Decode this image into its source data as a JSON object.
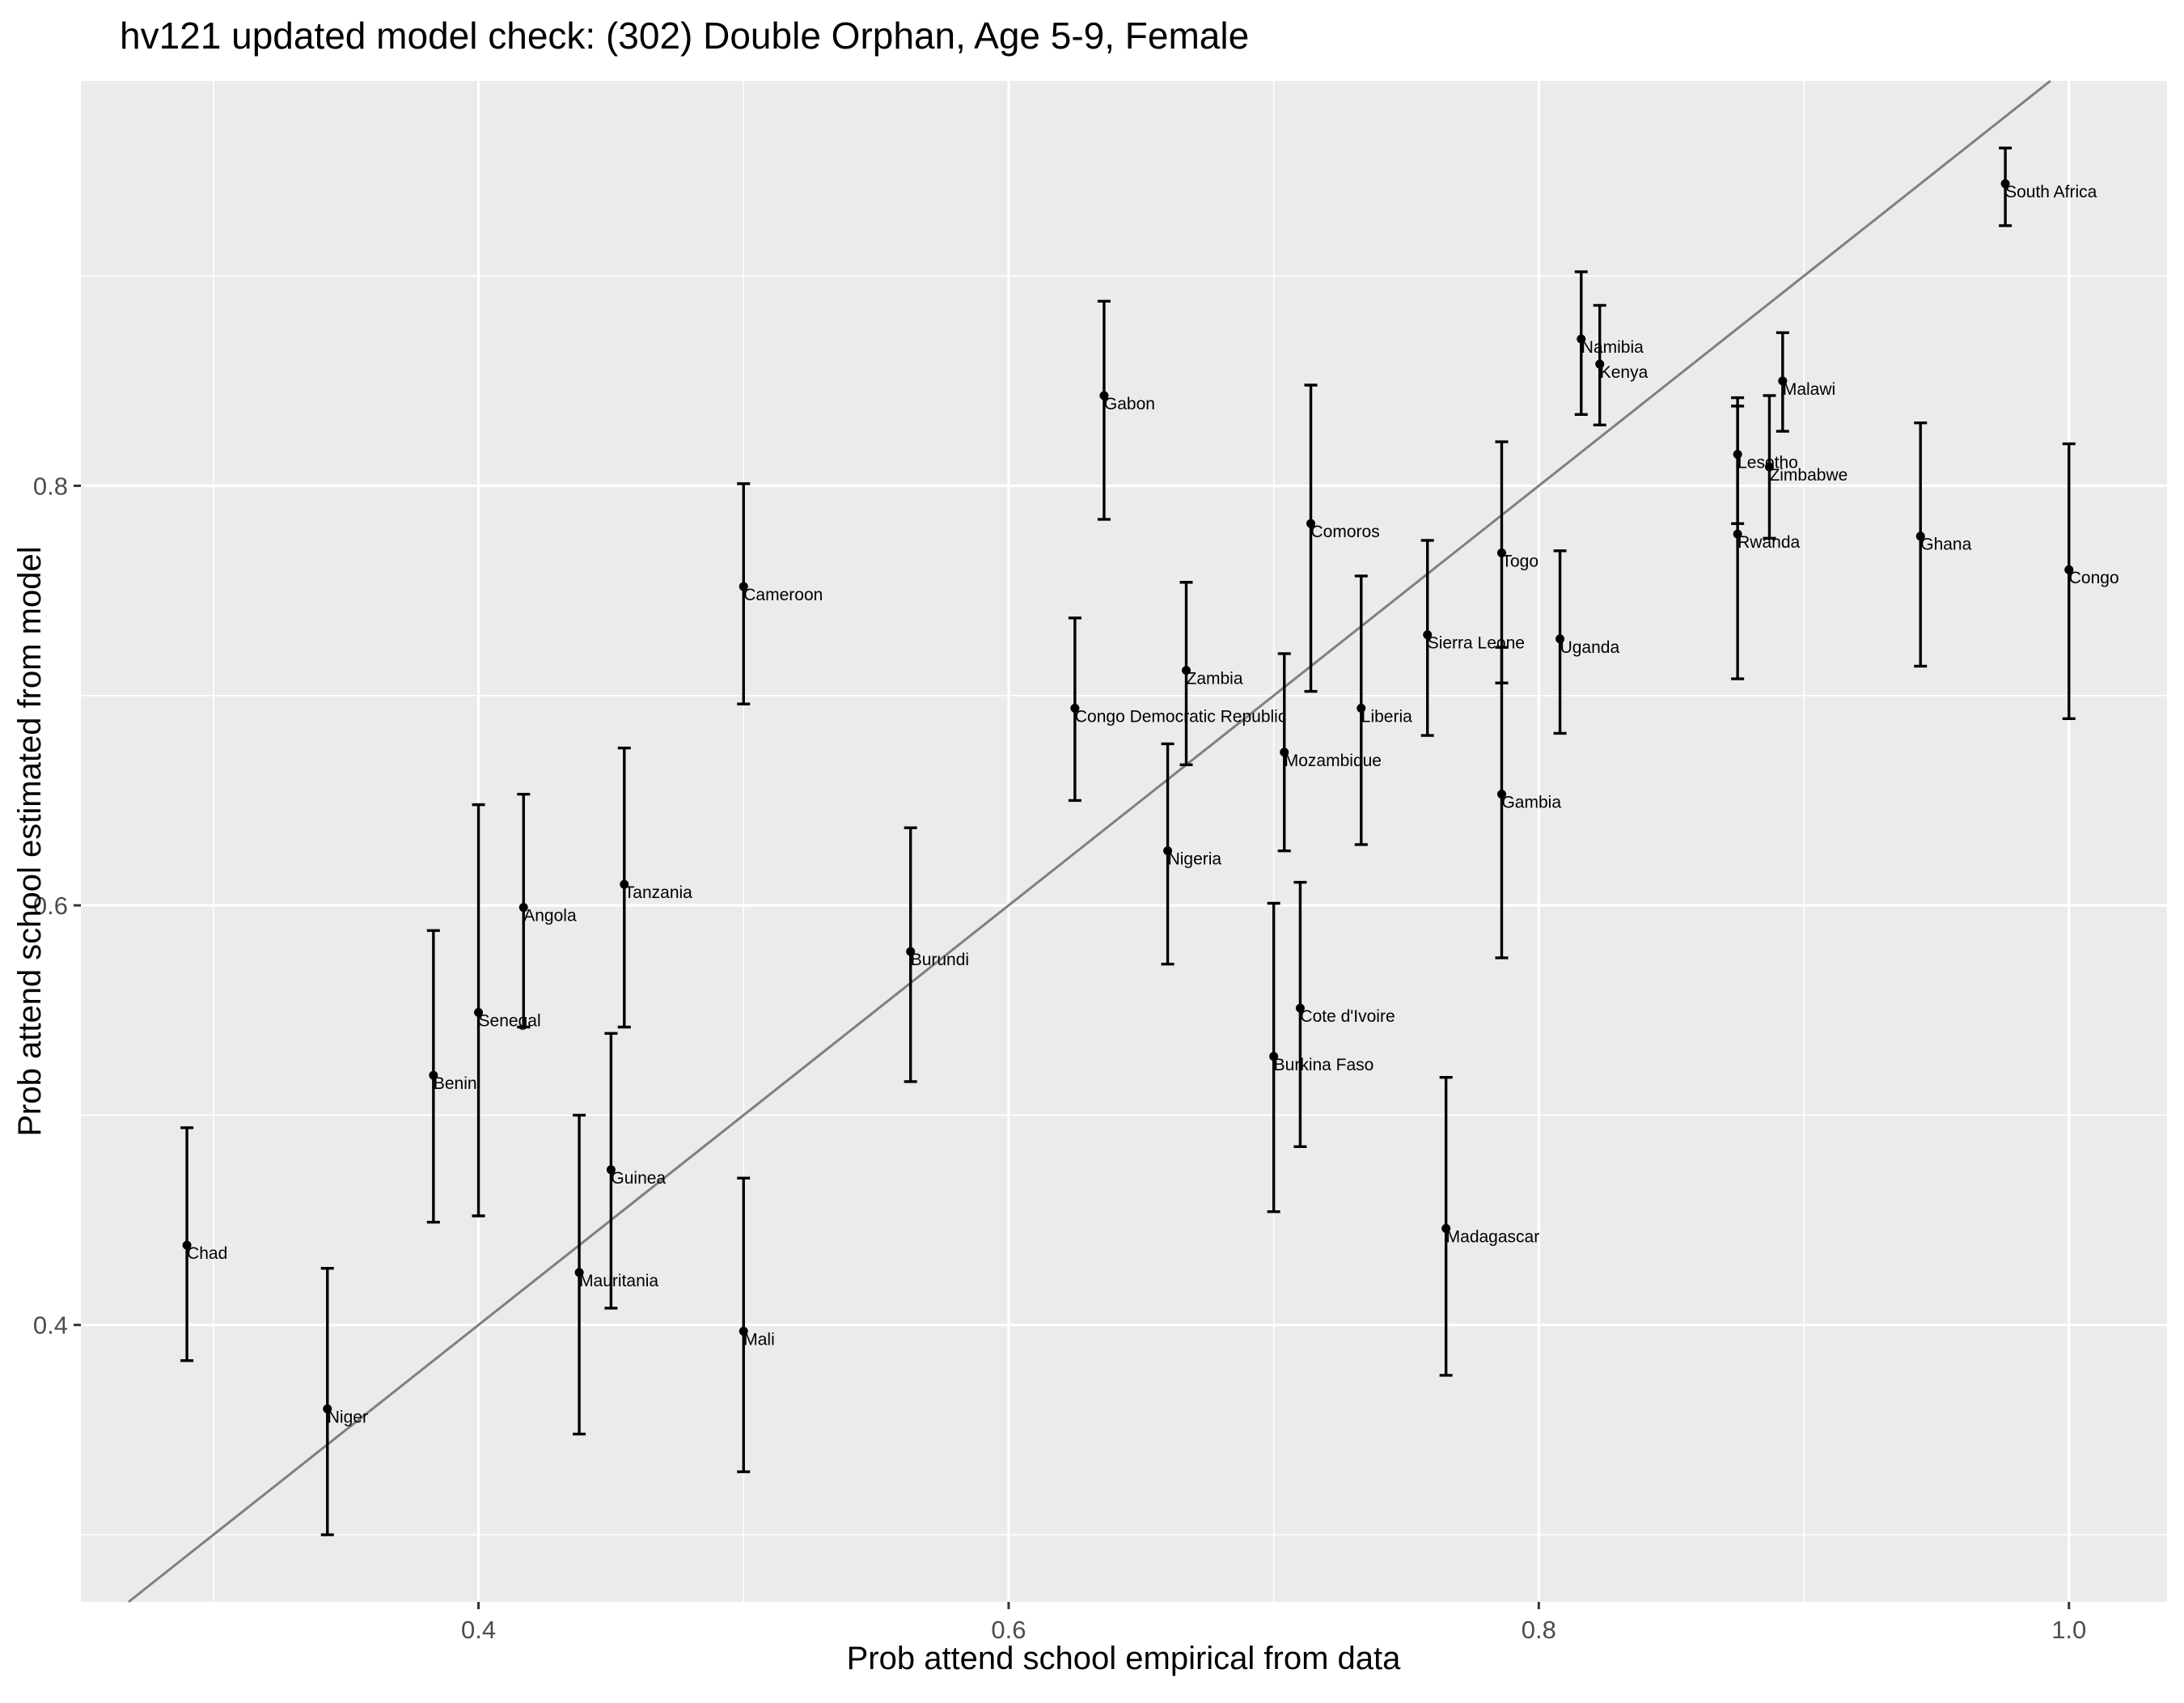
{
  "chart_data": {
    "type": "scatter",
    "title": "hv121 updated model check: (302) Double Orphan, Age 5-9, Female",
    "xlabel": "Prob attend school empirical from data",
    "ylabel": "Prob attend school estimated from model",
    "xlim": [
      0.25,
      1.037
    ],
    "ylim": [
      0.268,
      0.993
    ],
    "x_ticks": [
      0.4,
      0.6,
      0.8,
      1.0
    ],
    "x_tick_labels": [
      "0.4",
      "0.6",
      "0.8",
      "1.0"
    ],
    "y_ticks": [
      0.4,
      0.6,
      0.8
    ],
    "y_tick_labels": [
      "0.4",
      "0.6",
      "0.8"
    ],
    "grid": true,
    "background": "#ebebeb",
    "reference_line": {
      "type": "y=x",
      "color": "#7f7f7f"
    },
    "points": [
      {
        "label": "Chad",
        "x": 0.29,
        "y": 0.438,
        "lo": 0.383,
        "hi": 0.494
      },
      {
        "label": "Niger",
        "x": 0.343,
        "y": 0.36,
        "lo": 0.3,
        "hi": 0.427
      },
      {
        "label": "Benin",
        "x": 0.383,
        "y": 0.519,
        "lo": 0.449,
        "hi": 0.588
      },
      {
        "label": "Senegal",
        "x": 0.4,
        "y": 0.549,
        "lo": 0.452,
        "hi": 0.648
      },
      {
        "label": "Angola",
        "x": 0.417,
        "y": 0.599,
        "lo": 0.542,
        "hi": 0.653
      },
      {
        "label": "Mauritania",
        "x": 0.438,
        "y": 0.425,
        "lo": 0.348,
        "hi": 0.5
      },
      {
        "label": "Guinea",
        "x": 0.45,
        "y": 0.474,
        "lo": 0.408,
        "hi": 0.539
      },
      {
        "label": "Tanzania",
        "x": 0.455,
        "y": 0.61,
        "lo": 0.542,
        "hi": 0.675
      },
      {
        "label": "Cameroon",
        "x": 0.5,
        "y": 0.752,
        "lo": 0.696,
        "hi": 0.801
      },
      {
        "label": "Mali",
        "x": 0.5,
        "y": 0.397,
        "lo": 0.33,
        "hi": 0.47
      },
      {
        "label": "Burundi",
        "x": 0.563,
        "y": 0.578,
        "lo": 0.516,
        "hi": 0.637
      },
      {
        "label": "Congo Democratic Republic",
        "x": 0.625,
        "y": 0.694,
        "lo": 0.65,
        "hi": 0.737
      },
      {
        "label": "Gabon",
        "x": 0.636,
        "y": 0.843,
        "lo": 0.784,
        "hi": 0.888
      },
      {
        "label": "Nigeria",
        "x": 0.66,
        "y": 0.626,
        "lo": 0.572,
        "hi": 0.677
      },
      {
        "label": "Zambia",
        "x": 0.667,
        "y": 0.712,
        "lo": 0.667,
        "hi": 0.754
      },
      {
        "label": "Burkina Faso",
        "x": 0.7,
        "y": 0.528,
        "lo": 0.454,
        "hi": 0.601
      },
      {
        "label": "Mozambique",
        "x": 0.704,
        "y": 0.673,
        "lo": 0.626,
        "hi": 0.72
      },
      {
        "label": "Cote d'Ivoire",
        "x": 0.71,
        "y": 0.551,
        "lo": 0.485,
        "hi": 0.611
      },
      {
        "label": "Comoros",
        "x": 0.714,
        "y": 0.782,
        "lo": 0.702,
        "hi": 0.848
      },
      {
        "label": "Liberia",
        "x": 0.733,
        "y": 0.694,
        "lo": 0.629,
        "hi": 0.757
      },
      {
        "label": "Sierra Leone",
        "x": 0.758,
        "y": 0.729,
        "lo": 0.681,
        "hi": 0.774
      },
      {
        "label": "Madagascar",
        "x": 0.765,
        "y": 0.446,
        "lo": 0.376,
        "hi": 0.518
      },
      {
        "label": "Togo",
        "x": 0.786,
        "y": 0.768,
        "lo": 0.706,
        "hi": 0.821
      },
      {
        "label": "Gambia",
        "x": 0.786,
        "y": 0.653,
        "lo": 0.575,
        "hi": 0.723
      },
      {
        "label": "Uganda",
        "x": 0.808,
        "y": 0.727,
        "lo": 0.682,
        "hi": 0.769
      },
      {
        "label": "Namibia",
        "x": 0.816,
        "y": 0.87,
        "lo": 0.834,
        "hi": 0.902
      },
      {
        "label": "Kenya",
        "x": 0.823,
        "y": 0.858,
        "lo": 0.829,
        "hi": 0.886
      },
      {
        "label": "Lesotho",
        "x": 0.875,
        "y": 0.815,
        "lo": 0.782,
        "hi": 0.842
      },
      {
        "label": "Rwanda",
        "x": 0.875,
        "y": 0.777,
        "lo": 0.708,
        "hi": 0.838
      },
      {
        "label": "Zimbabwe",
        "x": 0.887,
        "y": 0.809,
        "lo": 0.775,
        "hi": 0.843
      },
      {
        "label": "Malawi",
        "x": 0.892,
        "y": 0.85,
        "lo": 0.826,
        "hi": 0.873
      },
      {
        "label": "Ghana",
        "x": 0.944,
        "y": 0.776,
        "lo": 0.714,
        "hi": 0.83
      },
      {
        "label": "South Africa",
        "x": 0.976,
        "y": 0.944,
        "lo": 0.924,
        "hi": 0.961
      },
      {
        "label": "Congo",
        "x": 1.0,
        "y": 0.76,
        "lo": 0.689,
        "hi": 0.82
      }
    ]
  }
}
